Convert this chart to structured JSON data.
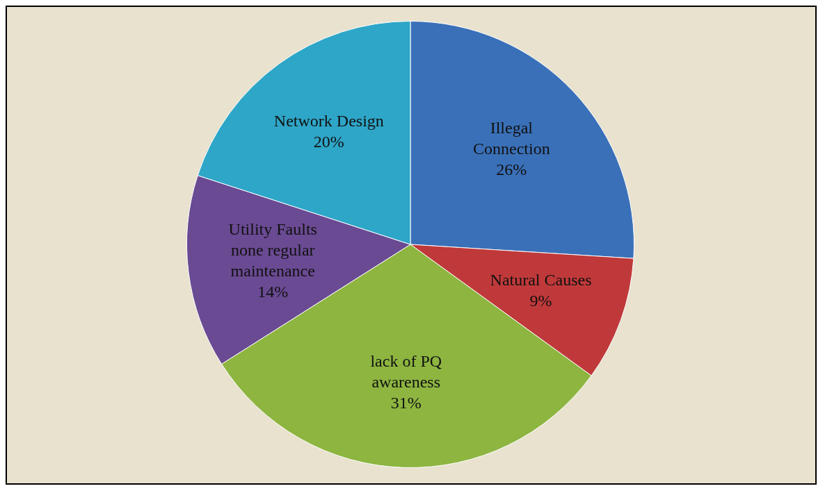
{
  "chart_data": {
    "type": "pie",
    "categories": [
      "Illegal Connection",
      "Natural Causes",
      "lack of PQ awareness",
      "Utility  Faults none regular maintenance",
      "Network Design"
    ],
    "values": [
      26,
      9,
      31,
      14,
      20
    ],
    "colors": [
      "#3a70b8",
      "#c0393a",
      "#8db540",
      "#6a4a93",
      "#2ea6c8"
    ],
    "value_labels": [
      "26%",
      "9%",
      "31%",
      "14%",
      "20%"
    ],
    "legend": false
  }
}
